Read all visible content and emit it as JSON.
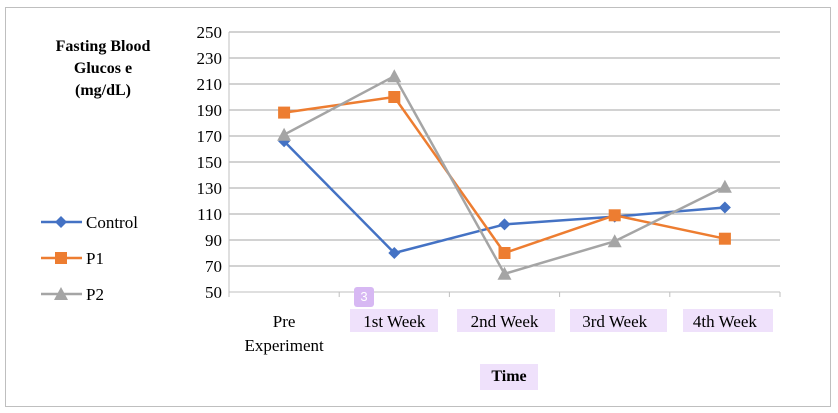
{
  "chart_data": {
    "type": "line",
    "ylabel": "Fasting Blood\nGlucos e\n(mg/dL)",
    "xlabel": "Time",
    "categories": [
      "Pre\nExperiment",
      "1st Week",
      "2nd Week",
      "3rd Week",
      "4th Week"
    ],
    "ylim": [
      50,
      250
    ],
    "yticks": [
      50,
      70,
      90,
      110,
      130,
      150,
      170,
      190,
      210,
      230,
      250
    ],
    "grid": true,
    "legend_position": "left",
    "series": [
      {
        "name": "Control",
        "color": "#4472c4",
        "marker": "diamond",
        "values": [
          166,
          80,
          102,
          108,
          115
        ]
      },
      {
        "name": "P1",
        "color": "#ed7d31",
        "marker": "square",
        "values": [
          188,
          200,
          80,
          109,
          91
        ]
      },
      {
        "name": "P2",
        "color": "#a5a5a5",
        "marker": "triangle",
        "values": [
          171,
          216,
          64,
          89,
          131
        ]
      }
    ]
  },
  "badge": "3"
}
